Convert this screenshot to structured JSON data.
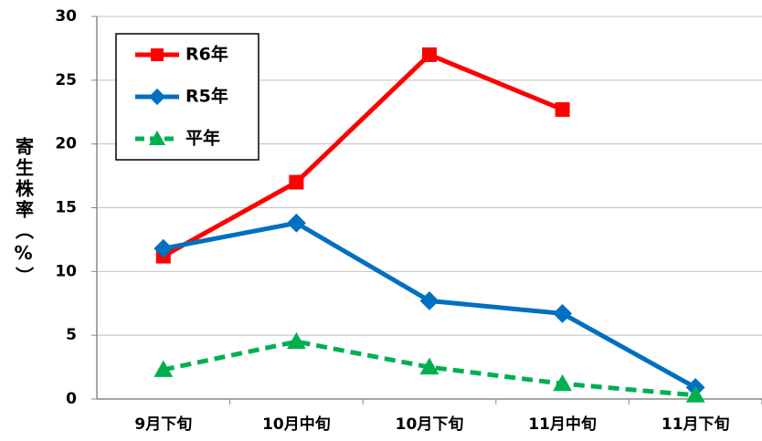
{
  "chart_data": {
    "type": "line",
    "y_label": "寄生株率（%）",
    "categories": [
      "9月下旬",
      "10月中旬",
      "10月下旬",
      "11月中旬",
      "11月下旬"
    ],
    "series": [
      {
        "name": "R6年",
        "color": "#ff0000",
        "marker": "square",
        "dashed": false,
        "values": [
          11.2,
          17,
          27,
          22.7,
          null
        ]
      },
      {
        "name": "R5年",
        "color": "#0070c0",
        "marker": "diamond",
        "dashed": false,
        "values": [
          11.8,
          13.8,
          7.7,
          6.7,
          0.9
        ]
      },
      {
        "name": "平年",
        "color": "#00b050",
        "marker": "triangle",
        "dashed": true,
        "values": [
          2.3,
          4.5,
          2.5,
          1.2,
          0.3
        ]
      }
    ],
    "ylim": [
      0,
      30
    ],
    "yticks": [
      0,
      5,
      10,
      15,
      20,
      25,
      30
    ],
    "grid": true,
    "legend": "upper left"
  }
}
